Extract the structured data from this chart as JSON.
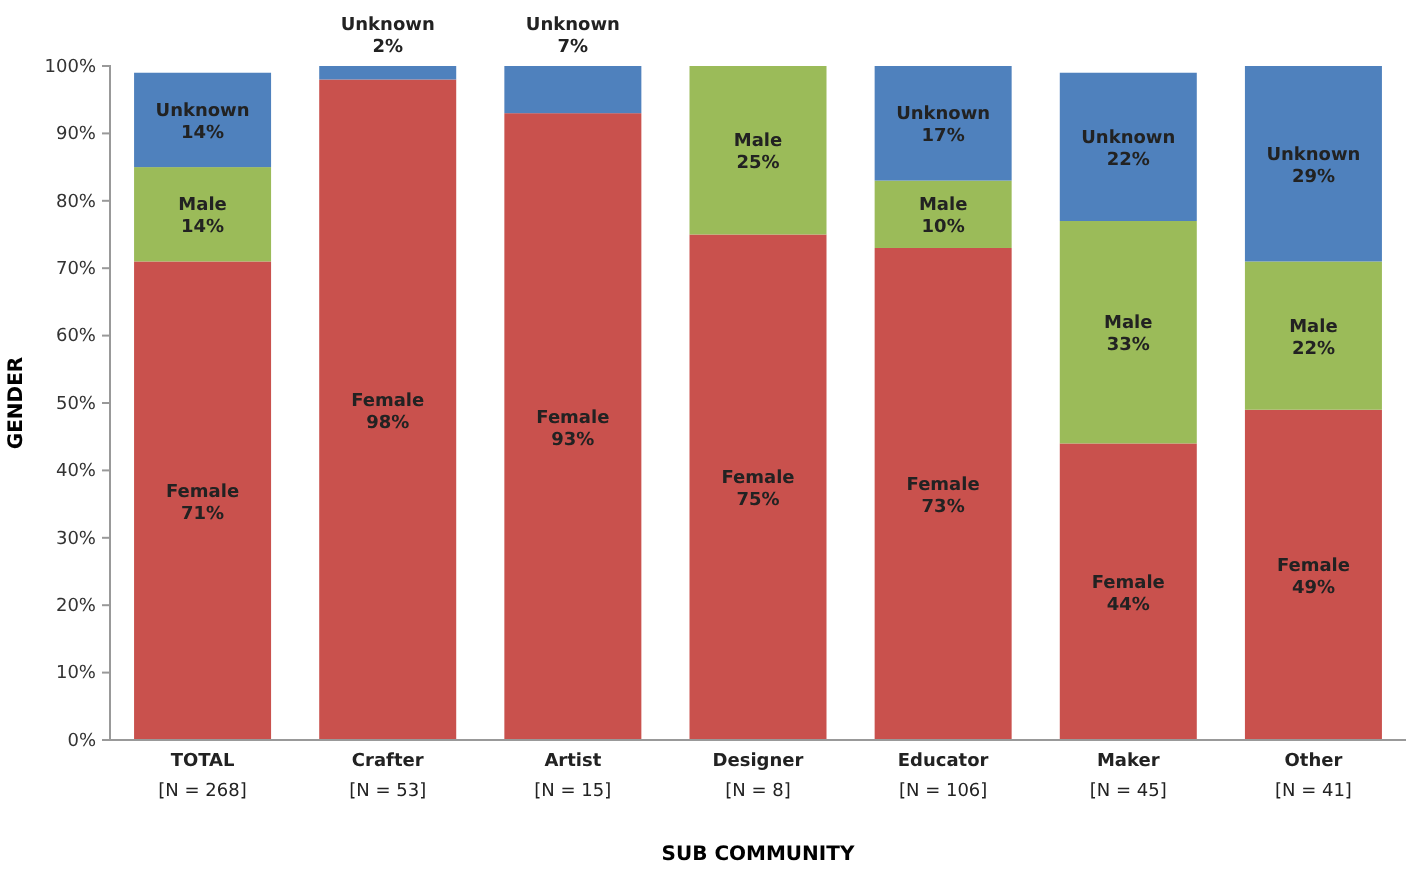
{
  "chart_data": {
    "type": "bar",
    "stacked": true,
    "xlabel": "SUB COMMUNITY",
    "ylabel": "GENDER",
    "categories": [
      "TOTAL\n[N = 268]",
      "Crafter\n[N = 53]",
      "Artist\n[N = 15]",
      "Designer\n[N = 8]",
      "Educator\n[N = 106]",
      "Maker\n[N = 45]",
      "Other\n[N = 41]"
    ],
    "series": [
      {
        "name": "Female",
        "color": "#c9514d",
        "values": [
          71,
          98,
          93,
          75,
          73,
          44,
          49
        ],
        "value_labels": [
          "71%",
          "98%",
          "93%",
          "75%",
          "73%",
          "44%",
          "49%"
        ]
      },
      {
        "name": "Male",
        "color": "#9bbb59",
        "values": [
          14,
          0,
          0,
          25,
          10,
          33,
          22
        ],
        "value_labels": [
          "14%",
          null,
          null,
          "25%",
          "10%",
          "33%",
          "22%"
        ]
      },
      {
        "name": "Unknown",
        "color": "#4f81bd",
        "values": [
          14,
          2,
          7,
          0,
          17,
          22,
          29
        ],
        "value_labels": [
          "14%",
          "2%",
          "7%",
          null,
          "17%",
          "22%",
          "29%"
        ]
      }
    ],
    "ylim": [
      0,
      100
    ],
    "yticks": [
      {
        "value": 0,
        "label": "0%"
      },
      {
        "value": 10,
        "label": "10%"
      },
      {
        "value": 20,
        "label": "20%"
      },
      {
        "value": 30,
        "label": "30%"
      },
      {
        "value": 40,
        "label": "40%"
      },
      {
        "value": 50,
        "label": "50%"
      },
      {
        "value": 60,
        "label": "60%"
      },
      {
        "value": 70,
        "label": "70%"
      },
      {
        "value": 80,
        "label": "80%"
      },
      {
        "value": 90,
        "label": "90%"
      },
      {
        "value": 100,
        "label": "100%"
      }
    ],
    "grid": false
  }
}
